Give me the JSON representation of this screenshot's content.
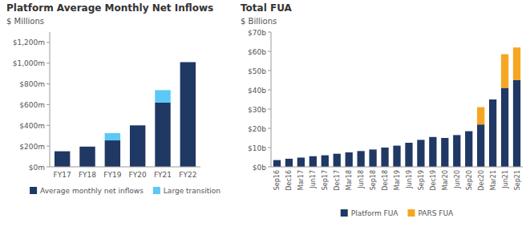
{
  "chart_data": [
    {
      "type": "bar",
      "stacked": true,
      "grid": false,
      "legend": "bottom",
      "title": "Platform Average Monthly Net Inflows",
      "ylabel": "$ Millions",
      "categories": [
        "FY17",
        "FY18",
        "FY19",
        "FY20",
        "FY21",
        "FY22"
      ],
      "series": [
        {
          "name": "Average monthly net inflows",
          "color": "#1F3864",
          "values": [
            150,
            195,
            255,
            400,
            620,
            1010
          ]
        },
        {
          "name": "Large transition",
          "color": "#5BC8F5",
          "values": [
            0,
            0,
            70,
            0,
            120,
            0
          ]
        }
      ],
      "ylim": [
        0,
        1300
      ],
      "yticks": [
        {
          "value": 0,
          "label": "$0m"
        },
        {
          "value": 200,
          "label": "$200m"
        },
        {
          "value": 400,
          "label": "$400m"
        },
        {
          "value": 600,
          "label": "$600m"
        },
        {
          "value": 800,
          "label": "$800m"
        },
        {
          "value": 1000,
          "label": "$1,000m"
        },
        {
          "value": 1200,
          "label": "$1,200m"
        }
      ]
    },
    {
      "type": "bar",
      "stacked": true,
      "grid": false,
      "legend": "bottom",
      "title": "Total FUA",
      "ylabel": "$ Billions",
      "categories": [
        "Sep16",
        "Dec16",
        "Mar17",
        "Jun17",
        "Sep17",
        "Dec17",
        "Mar18",
        "Jun18",
        "Sep18",
        "Dec18",
        "Mar19",
        "Jun19",
        "Sep19",
        "Dec19",
        "Mar20",
        "Jun20",
        "Sep20",
        "Dec20",
        "Mar21",
        "Jun21",
        "Sep21"
      ],
      "series": [
        {
          "name": "Platform FUA",
          "color": "#1F3864",
          "values": [
            3.5,
            4.2,
            4.8,
            5.5,
            6.0,
            6.8,
            7.5,
            8.2,
            9.0,
            10.0,
            11.0,
            12.5,
            14.0,
            15.5,
            15.0,
            16.5,
            18.5,
            22.0,
            35.0,
            41.0,
            45.0
          ]
        },
        {
          "name": "PARS FUA",
          "color": "#F5A623",
          "values": [
            0,
            0,
            0,
            0,
            0,
            0,
            0,
            0,
            0,
            0,
            0,
            0,
            0,
            0,
            0,
            0,
            0,
            9.0,
            0,
            17.5,
            17.0
          ]
        }
      ],
      "ylim": [
        0,
        70
      ],
      "yticks": [
        {
          "value": 0,
          "label": "$0b"
        },
        {
          "value": 10,
          "label": "$10b"
        },
        {
          "value": 20,
          "label": "$20b"
        },
        {
          "value": 30,
          "label": "$30b"
        },
        {
          "value": 40,
          "label": "$40b"
        },
        {
          "value": 50,
          "label": "$50b"
        },
        {
          "value": 60,
          "label": "$60b"
        },
        {
          "value": 70,
          "label": "$70b"
        }
      ]
    }
  ]
}
